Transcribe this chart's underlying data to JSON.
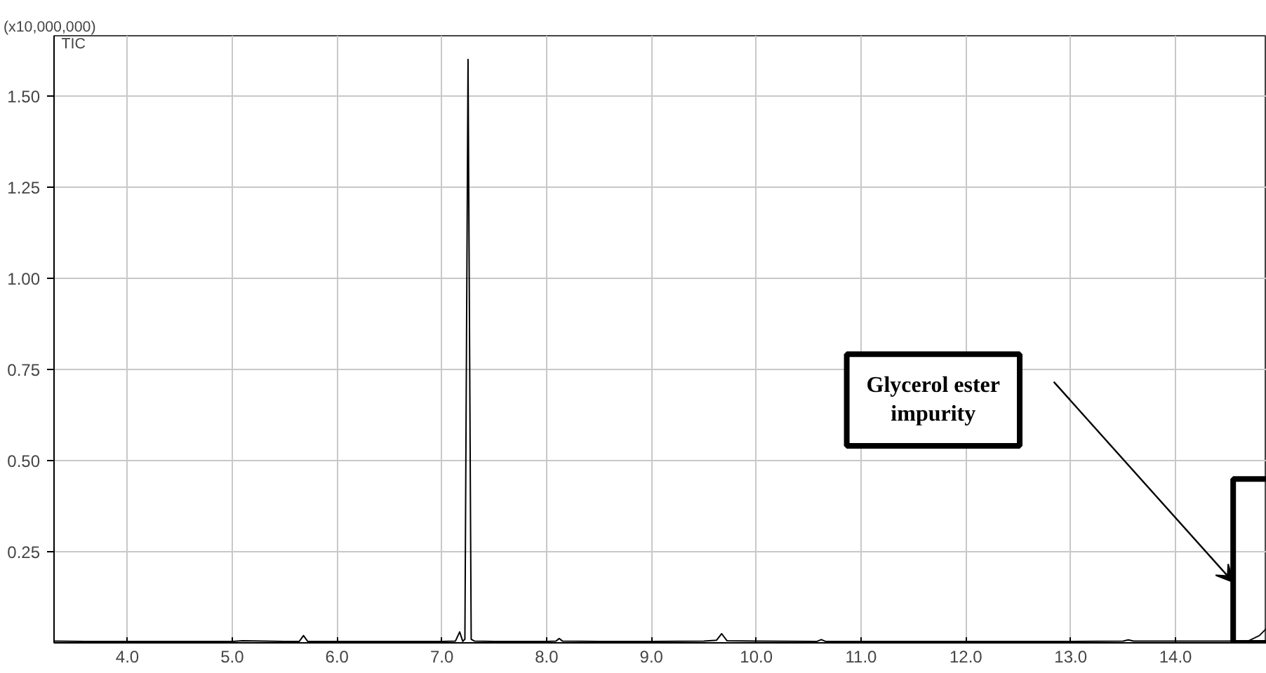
{
  "chart_data": {
    "type": "line",
    "ylabel": "(x10,000,000)",
    "annotations": [
      "TIC",
      "Glycerol ester impurity"
    ],
    "bands": [
      {
        "axis": "x",
        "from": 14.55,
        "to": 14.87,
        "label": null
      }
    ],
    "x": [
      3.3,
      3.6,
      4.0,
      4.5,
      5.0,
      5.1,
      5.5,
      5.64,
      5.68,
      5.72,
      6.0,
      6.5,
      7.0,
      7.13,
      7.17,
      7.2,
      7.22,
      7.25,
      7.28,
      7.31,
      7.5,
      8.0,
      8.09,
      8.12,
      8.15,
      8.5,
      9.0,
      9.5,
      9.62,
      9.67,
      9.72,
      10.0,
      10.58,
      10.62,
      10.66,
      11.0,
      12.0,
      13.0,
      13.5,
      13.55,
      13.6,
      14.0,
      14.5,
      14.7,
      14.8,
      14.87
    ],
    "series": [
      {
        "color": "#000000",
        "values": [
          0.005,
          0.004,
          0.004,
          0.004,
          0.004,
          0.006,
          0.004,
          0.004,
          0.02,
          0.004,
          0.004,
          0.004,
          0.004,
          0.005,
          0.03,
          0.004,
          0.01,
          1.6,
          0.01,
          0.005,
          0.004,
          0.004,
          0.005,
          0.012,
          0.005,
          0.004,
          0.004,
          0.005,
          0.007,
          0.025,
          0.006,
          0.005,
          0.004,
          0.009,
          0.004,
          0.004,
          0.004,
          0.004,
          0.005,
          0.008,
          0.005,
          0.005,
          0.005,
          0.006,
          0.02,
          0.04
        ]
      }
    ],
    "xlim": [
      3.3,
      14.87
    ],
    "ylim": [
      0,
      1.665
    ],
    "xticks": [
      {
        "value": 4,
        "label": "4.0"
      },
      {
        "value": 5,
        "label": "5.0"
      },
      {
        "value": 6,
        "label": "6.0"
      },
      {
        "value": 7,
        "label": "7.0"
      },
      {
        "value": 8,
        "label": "8.0"
      },
      {
        "value": 9,
        "label": "9.0"
      },
      {
        "value": 10,
        "label": "10.0"
      },
      {
        "value": 11,
        "label": "11.0"
      },
      {
        "value": 12,
        "label": "12.0"
      },
      {
        "value": 13,
        "label": "13.0"
      },
      {
        "value": 14,
        "label": "14.0"
      }
    ],
    "yticks": [
      {
        "value": 0.25,
        "label": "0.25"
      },
      {
        "value": 0.5,
        "label": "0.50"
      },
      {
        "value": 0.75,
        "label": "0.75"
      },
      {
        "value": 1.0,
        "label": "1.00"
      },
      {
        "value": 1.25,
        "label": "1.25"
      },
      {
        "value": 1.5,
        "label": "1.50"
      }
    ],
    "grid": true,
    "marker": "none",
    "line_style": "solid"
  }
}
